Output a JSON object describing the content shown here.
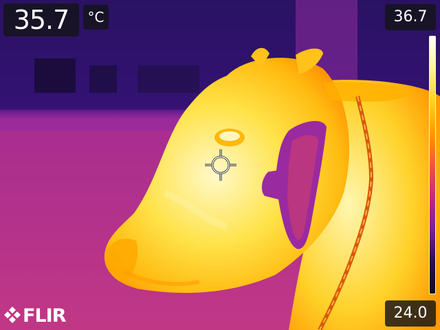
{
  "measurement": {
    "spot_temperature": "35.7",
    "unit": "°C"
  },
  "scale": {
    "max": "36.7",
    "min": "24.0",
    "palette": [
      "#ffffff",
      "#fff39a",
      "#ffd12a",
      "#ff9a00",
      "#f2563a",
      "#c12a80",
      "#7a1f9a",
      "#2d0f52",
      "#120a22"
    ]
  },
  "brand": {
    "logo_text": "FLIR"
  },
  "icons": {
    "crosshair": "spot-meter-crosshair-icon",
    "logo_mark": "flir-diamond-logo-icon"
  }
}
